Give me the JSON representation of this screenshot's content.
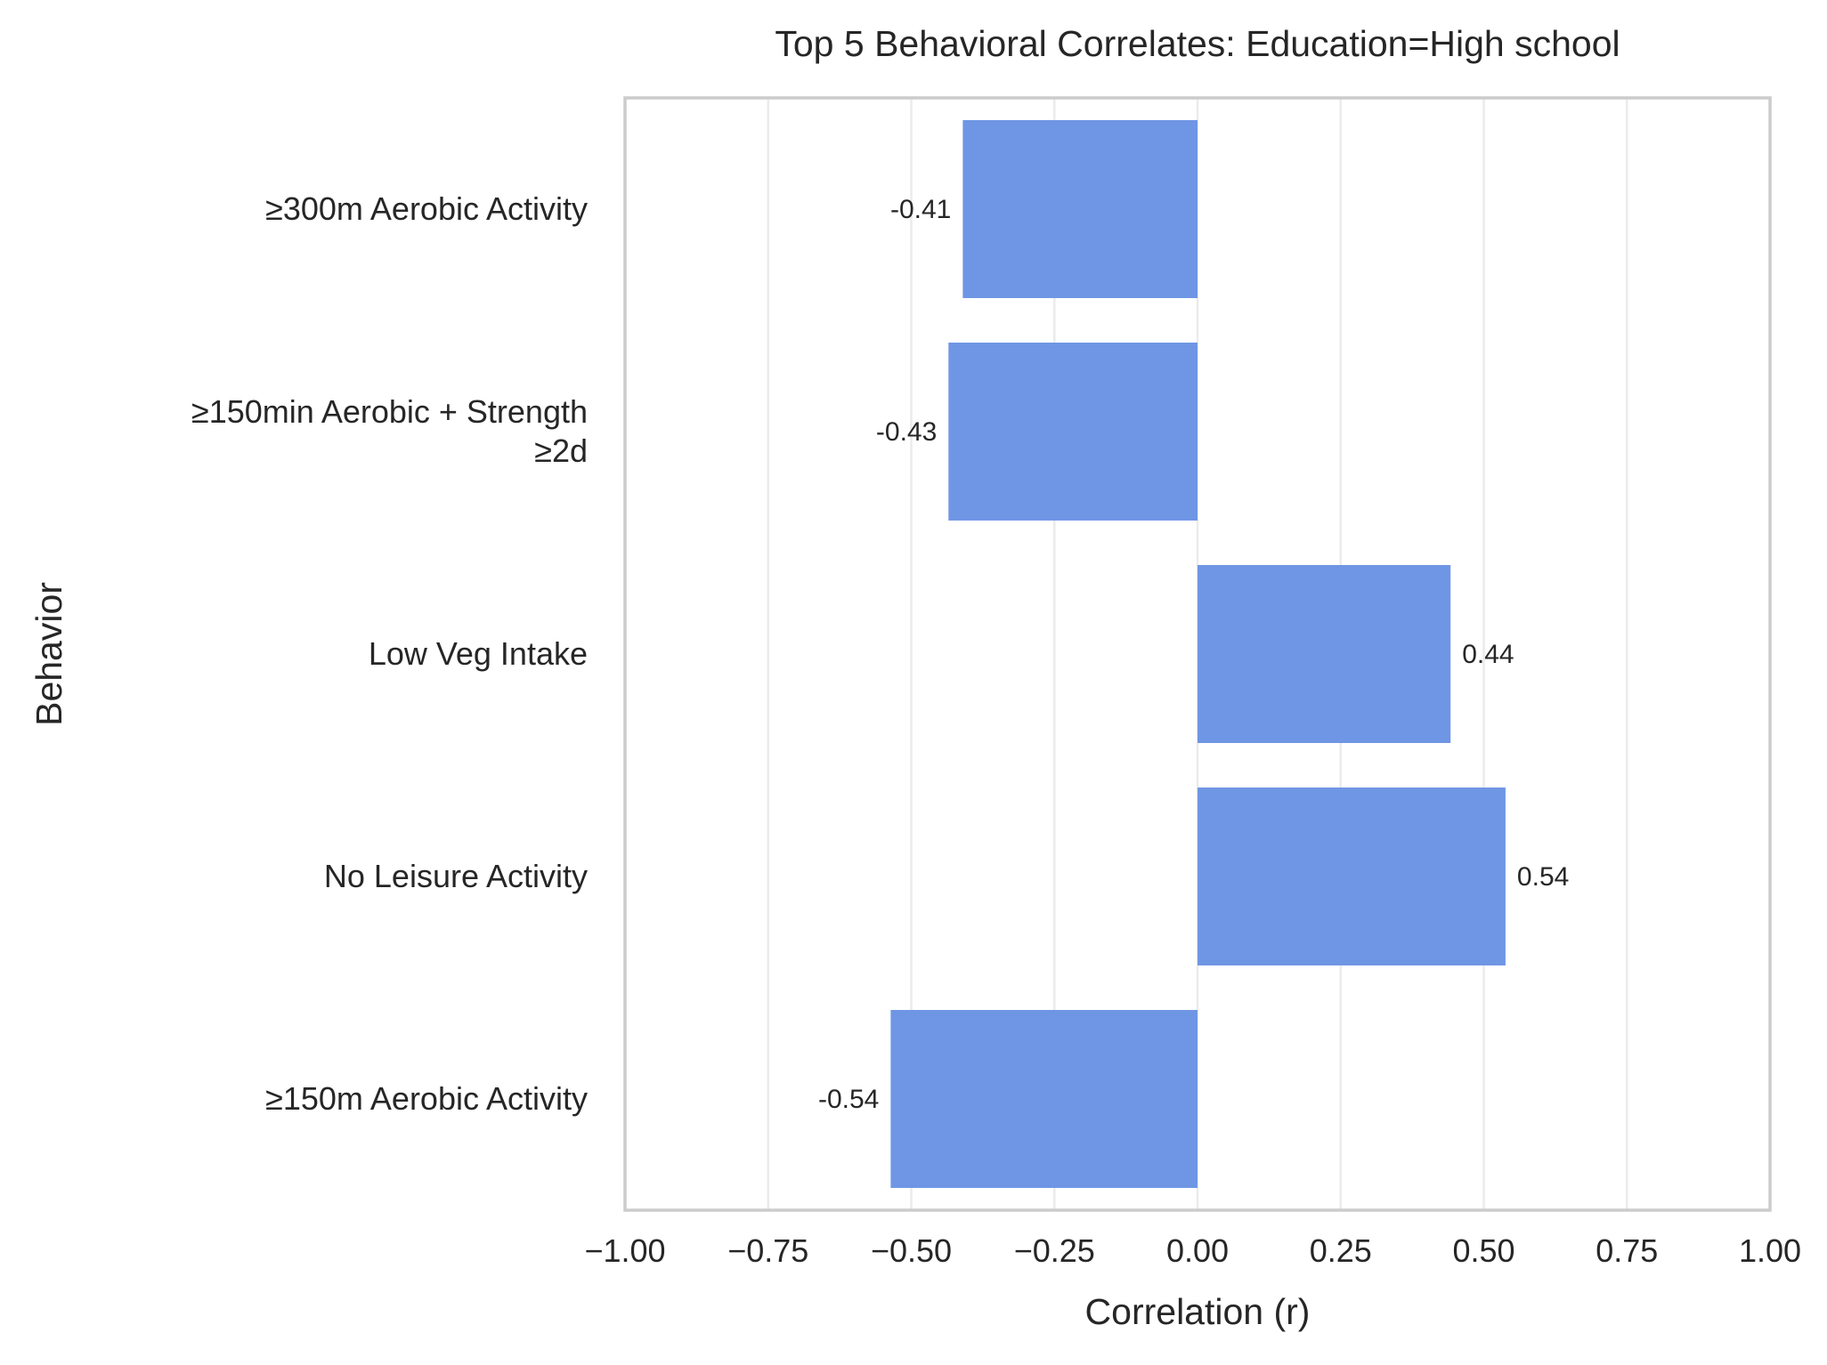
{
  "chart_data": {
    "type": "bar",
    "orientation": "horizontal",
    "title": "Top 5 Behavioral Correlates: Education=High school",
    "xlabel": "Correlation (r)",
    "ylabel": "Behavior",
    "xlim": [
      -1.0,
      1.0
    ],
    "x_ticks": [
      -1.0,
      -0.75,
      -0.5,
      -0.25,
      0.0,
      0.25,
      0.5,
      0.75,
      1.0
    ],
    "x_tick_labels": [
      "−1.00",
      "−0.75",
      "−0.50",
      "−0.25",
      "0.00",
      "0.25",
      "0.50",
      "0.75",
      "1.00"
    ],
    "grid": "vertical",
    "bar_color": "#6f96e4",
    "categories": [
      {
        "lines": [
          "≥300m Aerobic Activity"
        ],
        "value": -0.41,
        "label": "-0.41"
      },
      {
        "lines": [
          "≥150min Aerobic + Strength",
          "≥2d"
        ],
        "value": -0.435,
        "label": "-0.43"
      },
      {
        "lines": [
          "Low Veg Intake"
        ],
        "value": 0.442,
        "label": "0.44"
      },
      {
        "lines": [
          "No Leisure Activity"
        ],
        "value": 0.538,
        "label": "0.54"
      },
      {
        "lines": [
          "≥150m Aerobic Activity"
        ],
        "value": -0.536,
        "label": "-0.54"
      }
    ]
  }
}
